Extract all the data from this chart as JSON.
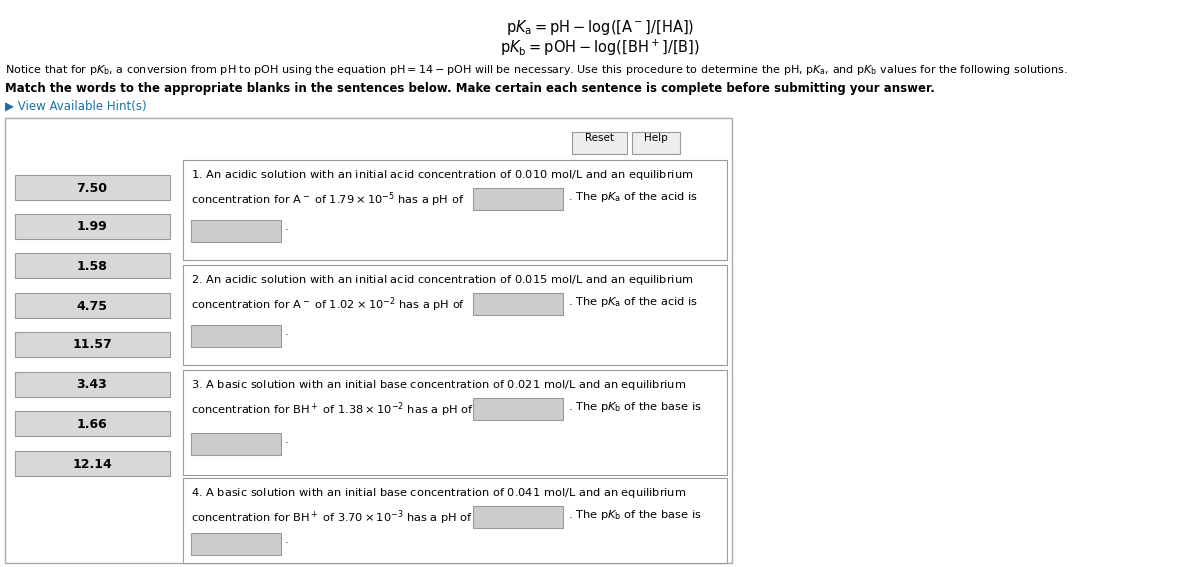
{
  "word_bank": [
    "7.50",
    "1.99",
    "1.58",
    "4.75",
    "11.57",
    "3.43",
    "1.66",
    "12.14"
  ],
  "bg_color": "#ffffff",
  "box_bg": "#d8d8d8",
  "box_border": "#999999",
  "panel_bg": "#ffffff",
  "panel_border": "#aaaaaa",
  "qbox_border": "#999999",
  "hint_color": "#1a6fa8",
  "btn_bg": "#eeeeee",
  "btn_border": "#999999",
  "ans_bg": "#cccccc",
  "ans_border": "#999999",
  "fig_w": 12.0,
  "fig_h": 5.67,
  "dpi": 100
}
